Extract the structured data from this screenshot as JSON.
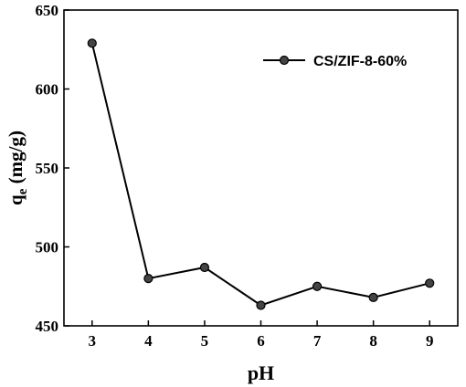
{
  "chart_data": {
    "type": "line",
    "xlabel": "pH",
    "ylabel": "q",
    "ylabel_sub": "e",
    "ylabel_unit": " (mg/g)",
    "xlim": [
      2.5,
      9.5
    ],
    "ylim": [
      450,
      650
    ],
    "xticks": [
      "3",
      "4",
      "5",
      "6",
      "7",
      "8",
      "9"
    ],
    "yticks": [
      "450",
      "500",
      "550",
      "600",
      "650"
    ],
    "legend_position": "top-right",
    "grid": false,
    "series": [
      {
        "name": "CS/ZIF-8-60%",
        "color": "#000000",
        "x": [
          3,
          4,
          5,
          6,
          7,
          8,
          9
        ],
        "y": [
          629,
          480,
          487,
          463,
          475,
          468,
          477
        ]
      }
    ]
  }
}
